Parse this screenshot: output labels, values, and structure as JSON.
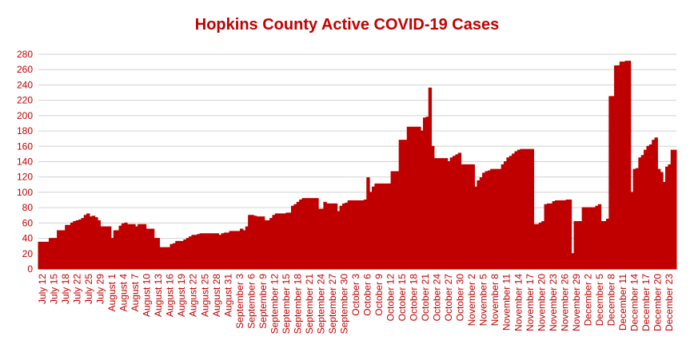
{
  "chart_data": {
    "type": "area",
    "title": "Hopkins County Active COVID-19 Cases",
    "xlabel": "",
    "ylabel": "",
    "ylim": [
      0,
      280
    ],
    "yticks": [
      0,
      20,
      40,
      60,
      80,
      100,
      120,
      140,
      160,
      180,
      200,
      220,
      240,
      260,
      280
    ],
    "grid": true,
    "legend": "none",
    "color": "#c00000",
    "x_start": "July 12",
    "x_end": "December 25",
    "tick_labels": [
      "July 12",
      "July 15",
      "July 18",
      "July 22",
      "July 25",
      "July 29",
      "August 1",
      "August 4",
      "August 7",
      "August 10",
      "August 13",
      "August 16",
      "August 19",
      "August 22",
      "August 25",
      "August 28",
      "August 31",
      "September 3",
      "September 6",
      "September 9",
      "September 12",
      "September 15",
      "September 18",
      "September 21",
      "September 24",
      "September 27",
      "September 30",
      "October 3",
      "October 6",
      "October 9",
      "October 12",
      "October 15",
      "October 18",
      "October 21",
      "October 24",
      "October 27",
      "October 30",
      "November 2",
      "November 5",
      "November 8",
      "November 11",
      "November 14",
      "November 17",
      "November 20",
      "November 23",
      "November 26",
      "November 29",
      "December 2",
      "December 5",
      "December 8",
      "December 11",
      "December 14",
      "December 17",
      "December 20",
      "December 23"
    ],
    "values": [
      35,
      35,
      35,
      35,
      40,
      40,
      40,
      50,
      50,
      50,
      57,
      57,
      60,
      62,
      63,
      64,
      66,
      70,
      72,
      68,
      69,
      67,
      63,
      55,
      55,
      55,
      55,
      40,
      50,
      50,
      56,
      59,
      60,
      58,
      58,
      58,
      55,
      58,
      58,
      58,
      52,
      52,
      52,
      40,
      40,
      28,
      28,
      28,
      28,
      32,
      33,
      36,
      36,
      36,
      38,
      40,
      42,
      44,
      44,
      45,
      46,
      46,
      46,
      46,
      46,
      46,
      46,
      44,
      46,
      47,
      47,
      49,
      49,
      49,
      49,
      52,
      50,
      55,
      70,
      70,
      69,
      68,
      68,
      68,
      63,
      63,
      66,
      70,
      72,
      72,
      72,
      72,
      73,
      73,
      82,
      84,
      87,
      90,
      92,
      92,
      92,
      92,
      92,
      92,
      78,
      78,
      87,
      85,
      85,
      85,
      85,
      75,
      82,
      85,
      86,
      89,
      89,
      89,
      89,
      89,
      89,
      90,
      119,
      100,
      107,
      111,
      111,
      111,
      111,
      111,
      111,
      127,
      127,
      127,
      168,
      168,
      168,
      185,
      185,
      185,
      185,
      185,
      180,
      197,
      198,
      236,
      160,
      144,
      144,
      144,
      144,
      144,
      140,
      145,
      147,
      149,
      151,
      136,
      136,
      136,
      136,
      136,
      107,
      115,
      119,
      125,
      127,
      128,
      130,
      130,
      130,
      130,
      136,
      140,
      145,
      147,
      150,
      153,
      155,
      156,
      156,
      156,
      156,
      156,
      58,
      58,
      60,
      62,
      84,
      85,
      85,
      88,
      89,
      89,
      89,
      89,
      90,
      90,
      20,
      62,
      62,
      62,
      80,
      80,
      80,
      80,
      80,
      82,
      84,
      62,
      62,
      65,
      225,
      225,
      265,
      265,
      270,
      270,
      271,
      271,
      100,
      130,
      131,
      145,
      148,
      155,
      160,
      162,
      168,
      171,
      130,
      126,
      113,
      133,
      136,
      155,
      155
    ]
  }
}
